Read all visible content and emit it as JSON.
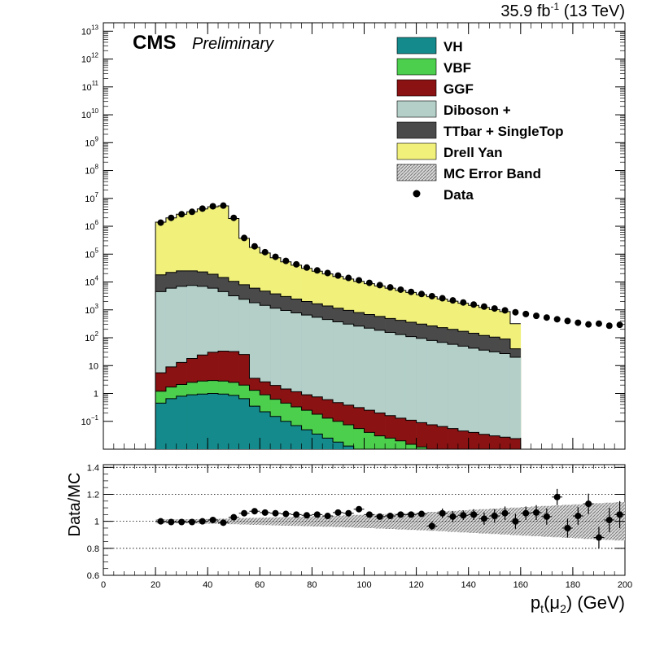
{
  "header": {
    "lumi_text": "35.9 fb",
    "lumi_sup": "-1",
    "energy_text": " (13 TeV)",
    "experiment": "CMS",
    "status": "Preliminary"
  },
  "chart_data": [
    {
      "type": "area",
      "panel": "main",
      "subtype": "stacked-histogram",
      "x_title": "p_t(μ_2) (GeV)",
      "y_scale": "log",
      "ylim": [
        0.01,
        20000000000000
      ],
      "xlim": [
        0,
        200
      ],
      "bin_width": 4,
      "bin_start": 20,
      "y_tick_labels": [
        {
          "value": 0.1,
          "base": "10",
          "exp": "−1"
        },
        {
          "value": 1,
          "base": "1",
          "exp": ""
        },
        {
          "value": 10,
          "base": "10",
          "exp": ""
        },
        {
          "value": 100,
          "base": "10",
          "exp": "2"
        },
        {
          "value": 1000,
          "base": "10",
          "exp": "3"
        },
        {
          "value": 10000,
          "base": "10",
          "exp": "4"
        },
        {
          "value": 100000,
          "base": "10",
          "exp": "5"
        },
        {
          "value": 1000000,
          "base": "10",
          "exp": "6"
        },
        {
          "value": 10000000,
          "base": "10",
          "exp": "7"
        },
        {
          "value": 100000000,
          "base": "10",
          "exp": "8"
        },
        {
          "value": 1000000000,
          "base": "10",
          "exp": "9"
        },
        {
          "value": 10000000000,
          "base": "10",
          "exp": "10"
        },
        {
          "value": 100000000000,
          "base": "10",
          "exp": "11"
        },
        {
          "value": 1000000000000,
          "base": "10",
          "exp": "12"
        },
        {
          "value": 10000000000000,
          "base": "10",
          "exp": "13"
        }
      ],
      "legend_position": "top-right",
      "series": [
        {
          "name": "VH",
          "color": "#148a8c",
          "cumulative": true,
          "values": [
            0.45,
            0.65,
            0.8,
            0.9,
            0.95,
            1.0,
            0.95,
            0.85,
            0.65,
            0.35,
            0.22,
            0.15,
            0.1,
            0.07,
            0.05,
            0.035,
            0.025,
            0.018,
            0.013,
            0.01,
            0.01,
            0.01,
            0.01,
            0.01,
            0.01,
            0.01,
            0.01,
            0.01,
            0.01,
            0.01,
            0.01,
            0.01,
            0.01,
            0.01,
            0.01
          ]
        },
        {
          "name": "VBF",
          "color": "#4ccf4c",
          "cumulative": true,
          "values": [
            1.2,
            1.7,
            2.1,
            2.5,
            2.8,
            2.9,
            2.8,
            2.5,
            2.0,
            1.3,
            0.9,
            0.62,
            0.45,
            0.33,
            0.25,
            0.18,
            0.13,
            0.1,
            0.075,
            0.055,
            0.04,
            0.03,
            0.025,
            0.02,
            0.015,
            0.012,
            0.01,
            0.01,
            0.01,
            0.01,
            0.01,
            0.01,
            0.01,
            0.01,
            0.01
          ]
        },
        {
          "name": "GGF",
          "color": "#8b1212",
          "cumulative": true,
          "values": [
            5.5,
            9,
            13,
            18,
            24,
            30,
            33,
            32,
            25,
            3.5,
            2.6,
            1.95,
            1.45,
            1.15,
            0.9,
            0.75,
            0.6,
            0.47,
            0.38,
            0.31,
            0.25,
            0.2,
            0.16,
            0.13,
            0.11,
            0.09,
            0.075,
            0.065,
            0.055,
            0.045,
            0.04,
            0.034,
            0.03,
            0.027,
            0.024
          ]
        },
        {
          "name": "Diboson +",
          "color": "#b3cfc8",
          "cumulative": true,
          "values": [
            4500,
            6000,
            7000,
            7500,
            7000,
            6000,
            4500,
            3200,
            2400,
            1800,
            1450,
            1150,
            950,
            780,
            650,
            540,
            450,
            370,
            310,
            260,
            220,
            185,
            155,
            130,
            110,
            95,
            80,
            68,
            58,
            50,
            42,
            36,
            31,
            27,
            20
          ]
        },
        {
          "name": "TTbar + SingleTop",
          "color": "#4a4a4a",
          "cumulative": true,
          "values": [
            18000,
            22000,
            25000,
            25000,
            23000,
            19000,
            14500,
            10500,
            8000,
            6000,
            4700,
            3750,
            3000,
            2450,
            2000,
            1650,
            1380,
            1150,
            960,
            800,
            680,
            580,
            490,
            420,
            360,
            310,
            265,
            230,
            200,
            170,
            145,
            120,
            105,
            90,
            40
          ]
        },
        {
          "name": "Drell Yan",
          "color": "#f0f07a",
          "cumulative": true,
          "values": [
            1400000,
            2000000,
            2700000,
            3300000,
            4200000,
            5000000,
            5400000,
            1900000,
            370000,
            175000,
            110000,
            74000,
            53000,
            40000,
            31000,
            24500,
            19500,
            15800,
            12800,
            10500,
            8700,
            7200,
            6000,
            5000,
            4200,
            3500,
            2950,
            2450,
            2050,
            1730,
            1450,
            1220,
            1030,
            870,
            320
          ]
        },
        {
          "name": "MC Error Band",
          "color": "#9a9a9a",
          "hatch": true
        }
      ],
      "data_points": {
        "name": "Data",
        "color": "#000000",
        "x": [
          22,
          26,
          30,
          34,
          38,
          42,
          46,
          50,
          54,
          58,
          62,
          66,
          70,
          74,
          78,
          82,
          86,
          90,
          94,
          98,
          102,
          106,
          110,
          114,
          118,
          122,
          126,
          130,
          134,
          138,
          142,
          146,
          150,
          154,
          158,
          162,
          166,
          170,
          174,
          178,
          182,
          186,
          190,
          194,
          198
        ],
        "y": [
          1350000,
          2000000,
          2700000,
          3300000,
          4300000,
          5200000,
          5500000,
          2000000,
          380000,
          190000,
          118000,
          80000,
          57000,
          43000,
          33000,
          26000,
          21000,
          17000,
          14000,
          11500,
          9300,
          7700,
          6400,
          5300,
          4400,
          3700,
          3100,
          2600,
          2180,
          1840,
          1550,
          1310,
          1120,
          960,
          820,
          710,
          610,
          530,
          460,
          400,
          345,
          300,
          320,
          270,
          290
        ]
      }
    },
    {
      "type": "scatter",
      "panel": "ratio",
      "ylabel": "Data/MC",
      "x_title": "p_t(μ_2) (GeV)",
      "xlim": [
        0,
        200
      ],
      "ylim": [
        0.6,
        1.42
      ],
      "x_ticks": [
        0,
        20,
        40,
        60,
        80,
        100,
        120,
        140,
        160,
        180,
        200
      ],
      "y_ticks": [
        0.6,
        0.8,
        1,
        1.2,
        1.4
      ],
      "y_tick_labels": [
        "0.6",
        "0.8",
        "1",
        "1.2",
        "1.4"
      ],
      "reference_lines": [
        0.8,
        1.0,
        1.2,
        1.4
      ],
      "x": [
        22,
        26,
        30,
        34,
        38,
        42,
        46,
        50,
        54,
        58,
        62,
        66,
        70,
        74,
        78,
        82,
        86,
        90,
        94,
        98,
        102,
        106,
        110,
        114,
        118,
        122,
        126,
        130,
        134,
        138,
        142,
        146,
        150,
        154,
        158,
        162,
        166,
        170,
        174,
        178,
        182,
        186,
        190,
        194,
        198
      ],
      "y": [
        1.0,
        0.995,
        0.995,
        0.995,
        1.0,
        1.01,
        0.99,
        1.03,
        1.06,
        1.075,
        1.065,
        1.06,
        1.055,
        1.05,
        1.045,
        1.05,
        1.04,
        1.065,
        1.06,
        1.09,
        1.05,
        1.035,
        1.04,
        1.05,
        1.05,
        1.055,
        0.965,
        1.06,
        1.035,
        1.045,
        1.05,
        1.02,
        1.04,
        1.06,
        1.0,
        1.06,
        1.065,
        1.035,
        1.18,
        0.95,
        1.04,
        1.13,
        0.88,
        1.01,
        1.05
      ],
      "y_err": [
        0.01,
        0.01,
        0.01,
        0.01,
        0.01,
        0.01,
        0.01,
        0.01,
        0.01,
        0.01,
        0.01,
        0.01,
        0.01,
        0.01,
        0.01,
        0.01,
        0.012,
        0.012,
        0.012,
        0.015,
        0.015,
        0.015,
        0.017,
        0.018,
        0.02,
        0.02,
        0.03,
        0.035,
        0.04,
        0.035,
        0.04,
        0.045,
        0.05,
        0.05,
        0.055,
        0.05,
        0.055,
        0.06,
        0.06,
        0.07,
        0.065,
        0.075,
        0.08,
        0.09,
        0.1
      ],
      "mc_band_halfwidth": [
        0.015,
        0.015,
        0.015,
        0.016,
        0.017,
        0.018,
        0.02,
        0.022,
        0.024,
        0.026,
        0.028,
        0.03,
        0.032,
        0.034,
        0.036,
        0.038,
        0.04,
        0.042,
        0.045,
        0.048,
        0.05,
        0.053,
        0.056,
        0.06,
        0.063,
        0.066,
        0.07,
        0.074,
        0.078,
        0.082,
        0.086,
        0.09,
        0.094,
        0.098,
        0.102,
        0.106,
        0.11,
        0.114,
        0.118,
        0.122,
        0.126,
        0.13,
        0.134,
        0.138,
        0.142
      ]
    }
  ]
}
